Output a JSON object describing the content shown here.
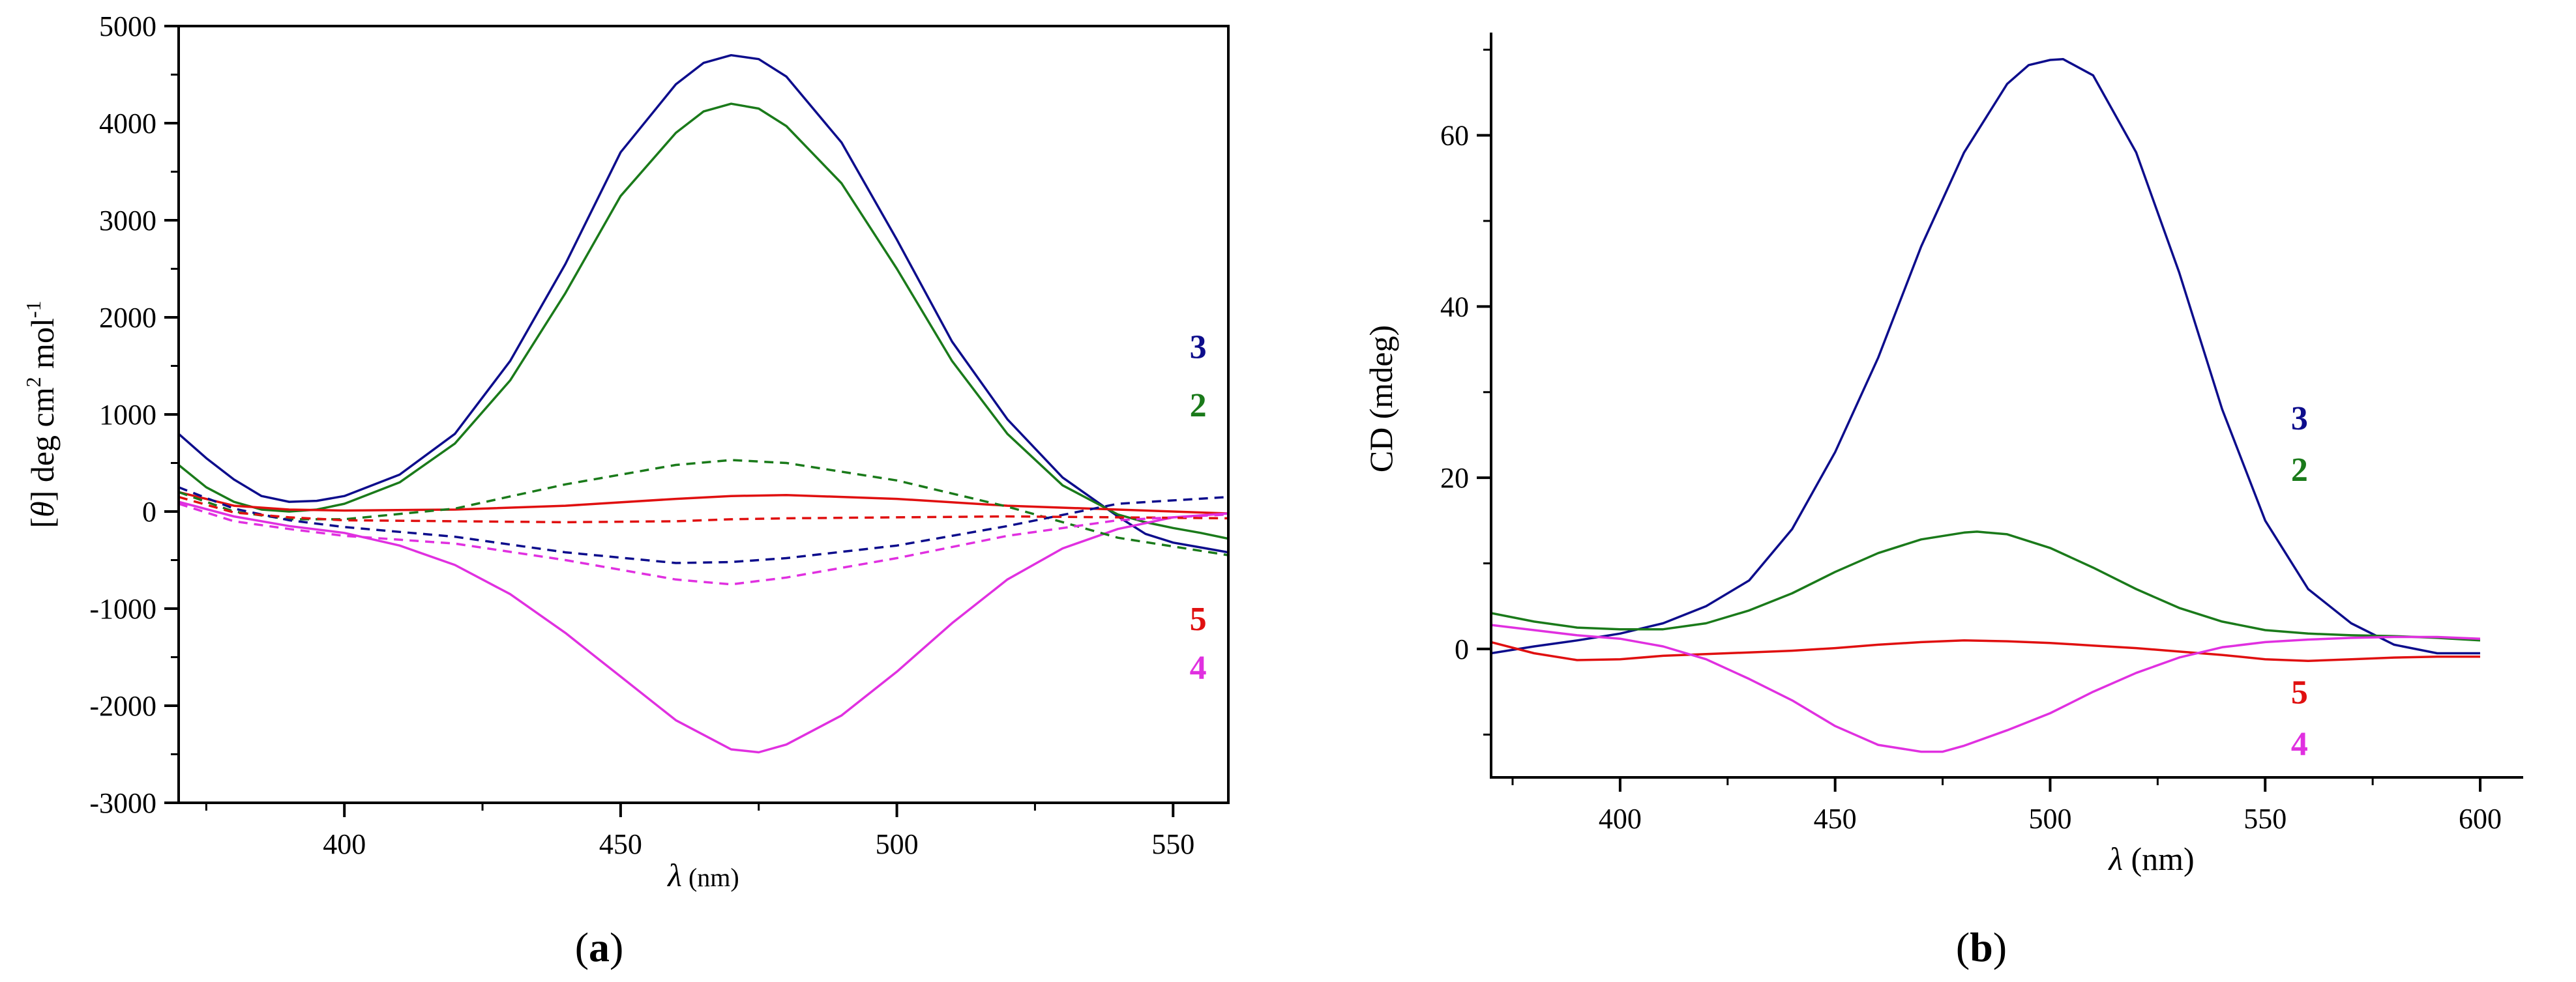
{
  "chart_data": [
    {
      "type": "line",
      "panel": "(a)",
      "panel_label": {
        "open": "(",
        "letter": "a",
        "close": ")"
      },
      "xlabel": {
        "symbol": "λ",
        "unit": " (nm)"
      },
      "ylabel": {
        "left": "[",
        "theta": "θ",
        "mid": "] deg cm",
        "sup2": "2",
        "mol": " mol",
        "supm1": "-1"
      },
      "xlim": [
        370,
        560
      ],
      "ylim": [
        -3000,
        5000
      ],
      "xticks": [
        400,
        450,
        500,
        550
      ],
      "yticks": [
        -3000,
        -2000,
        -1000,
        0,
        1000,
        2000,
        3000,
        4000,
        5000
      ],
      "series_labels": [
        {
          "text": "3",
          "color": "#0d0d8c",
          "x": 553,
          "y": 1700
        },
        {
          "text": "2",
          "color": "#1a7a1a",
          "x": 553,
          "y": 1100
        },
        {
          "text": "5",
          "color": "#e01010",
          "x": 553,
          "y": -1100
        },
        {
          "text": "4",
          "color": "#e030e0",
          "x": 553,
          "y": -1600
        }
      ],
      "series": [
        {
          "name": "3",
          "style": "solid",
          "color": "#0d0d8c",
          "x": [
            370,
            375,
            380,
            385,
            390,
            395,
            400,
            410,
            420,
            430,
            440,
            450,
            460,
            465,
            470,
            475,
            480,
            490,
            500,
            510,
            520,
            530,
            540,
            545,
            550,
            555,
            560
          ],
          "y": [
            800,
            550,
            330,
            160,
            100,
            110,
            160,
            380,
            800,
            1550,
            2550,
            3700,
            4400,
            4620,
            4700,
            4660,
            4480,
            3800,
            2800,
            1750,
            950,
            350,
            -50,
            -230,
            -320,
            -370,
            -420
          ]
        },
        {
          "name": "2",
          "style": "solid",
          "color": "#1a7a1a",
          "x": [
            370,
            375,
            380,
            385,
            390,
            395,
            400,
            410,
            420,
            430,
            440,
            450,
            460,
            465,
            470,
            475,
            480,
            490,
            500,
            510,
            520,
            530,
            540,
            545,
            550,
            555,
            560
          ],
          "y": [
            480,
            250,
            100,
            20,
            0,
            20,
            80,
            300,
            700,
            1350,
            2250,
            3250,
            3900,
            4120,
            4200,
            4150,
            3970,
            3380,
            2500,
            1550,
            800,
            270,
            -30,
            -110,
            -170,
            -220,
            -280
          ]
        },
        {
          "name": "5",
          "style": "solid",
          "color": "#e01010",
          "x": [
            370,
            380,
            390,
            400,
            420,
            440,
            460,
            470,
            480,
            500,
            520,
            540,
            560
          ],
          "y": [
            200,
            60,
            20,
            10,
            20,
            60,
            130,
            160,
            170,
            130,
            60,
            20,
            -20
          ]
        },
        {
          "name": "4",
          "style": "solid",
          "color": "#e030e0",
          "x": [
            370,
            380,
            390,
            400,
            410,
            420,
            430,
            440,
            450,
            460,
            470,
            475,
            480,
            490,
            500,
            510,
            520,
            530,
            540,
            550,
            560
          ],
          "y": [
            100,
            -50,
            -150,
            -220,
            -350,
            -550,
            -850,
            -1250,
            -1700,
            -2150,
            -2450,
            -2480,
            -2400,
            -2100,
            -1650,
            -1150,
            -700,
            -380,
            -180,
            -60,
            -20
          ]
        },
        {
          "name": "2 (dashed)",
          "style": "dashed",
          "color": "#1a7a1a",
          "x": [
            370,
            380,
            390,
            400,
            420,
            440,
            460,
            470,
            480,
            500,
            520,
            540,
            560
          ],
          "y": [
            200,
            0,
            -80,
            -80,
            30,
            280,
            480,
            530,
            500,
            320,
            50,
            -270,
            -450
          ]
        },
        {
          "name": "3 (dashed)",
          "style": "dashed",
          "color": "#0d0d8c",
          "x": [
            370,
            380,
            390,
            400,
            420,
            440,
            460,
            470,
            480,
            500,
            520,
            540,
            560
          ],
          "y": [
            250,
            30,
            -90,
            -160,
            -260,
            -420,
            -530,
            -520,
            -480,
            -350,
            -150,
            80,
            150
          ]
        },
        {
          "name": "5 (dashed)",
          "style": "dashed",
          "color": "#e01010",
          "x": [
            370,
            380,
            390,
            400,
            420,
            440,
            460,
            470,
            480,
            500,
            520,
            540,
            560
          ],
          "y": [
            150,
            -10,
            -60,
            -90,
            -100,
            -110,
            -100,
            -80,
            -70,
            -60,
            -50,
            -60,
            -70
          ]
        },
        {
          "name": "4 (dashed)",
          "style": "dashed",
          "color": "#e030e0",
          "x": [
            370,
            380,
            390,
            400,
            420,
            440,
            460,
            470,
            480,
            500,
            520,
            540,
            560
          ],
          "y": [
            80,
            -100,
            -180,
            -250,
            -330,
            -500,
            -700,
            -750,
            -680,
            -480,
            -250,
            -90,
            -30
          ]
        }
      ]
    },
    {
      "type": "line",
      "panel": "(b)",
      "panel_label": {
        "open": "(",
        "letter": "b",
        "close": ")"
      },
      "xlabel": {
        "symbol": "λ",
        "unit": " (nm)"
      },
      "ylabel": {
        "text": "CD (mdeg)"
      },
      "xlim": [
        370,
        610
      ],
      "ylim": [
        -15,
        72
      ],
      "xticks": [
        400,
        450,
        500,
        550,
        600
      ],
      "yticks": [
        0,
        20,
        40,
        60
      ],
      "series_labels": [
        {
          "text": "3",
          "color": "#0d0d8c",
          "x": 556,
          "y": 27
        },
        {
          "text": "2",
          "color": "#1a7a1a",
          "x": 556,
          "y": 21
        },
        {
          "text": "5",
          "color": "#e01010",
          "x": 556,
          "y": -5
        },
        {
          "text": "4",
          "color": "#e030e0",
          "x": 556,
          "y": -11
        }
      ],
      "series": [
        {
          "name": "3",
          "style": "solid",
          "color": "#0d0d8c",
          "x": [
            370,
            380,
            390,
            400,
            410,
            420,
            430,
            440,
            450,
            460,
            470,
            480,
            490,
            495,
            500,
            503,
            510,
            520,
            530,
            540,
            550,
            560,
            570,
            580,
            590,
            600
          ],
          "y": [
            -0.5,
            0.3,
            1,
            1.8,
            3,
            5,
            8,
            14,
            23,
            34,
            47,
            58,
            66,
            68.2,
            68.8,
            68.9,
            67,
            58,
            44,
            28,
            15,
            7,
            3,
            0.5,
            -0.5,
            -0.5
          ]
        },
        {
          "name": "2",
          "style": "solid",
          "color": "#1a7a1a",
          "x": [
            370,
            380,
            390,
            400,
            410,
            420,
            430,
            440,
            450,
            460,
            470,
            480,
            483,
            490,
            500,
            510,
            520,
            530,
            540,
            550,
            560,
            570,
            580,
            590,
            600
          ],
          "y": [
            4.2,
            3.2,
            2.5,
            2.3,
            2.3,
            3,
            4.5,
            6.5,
            9,
            11.2,
            12.8,
            13.6,
            13.7,
            13.4,
            11.8,
            9.5,
            7,
            4.8,
            3.2,
            2.2,
            1.8,
            1.6,
            1.5,
            1.3,
            1.0
          ]
        },
        {
          "name": "5",
          "style": "solid",
          "color": "#e01010",
          "x": [
            370,
            380,
            390,
            400,
            410,
            420,
            430,
            440,
            450,
            460,
            470,
            480,
            490,
            500,
            510,
            520,
            530,
            540,
            550,
            560,
            570,
            580,
            590,
            600
          ],
          "y": [
            0.8,
            -0.5,
            -1.3,
            -1.2,
            -0.8,
            -0.6,
            -0.4,
            -0.2,
            0.1,
            0.5,
            0.8,
            1.0,
            0.9,
            0.7,
            0.4,
            0.1,
            -0.3,
            -0.7,
            -1.2,
            -1.4,
            -1.2,
            -1.0,
            -0.9,
            -0.9
          ]
        },
        {
          "name": "4",
          "style": "solid",
          "color": "#e030e0",
          "x": [
            370,
            380,
            390,
            400,
            410,
            420,
            430,
            440,
            450,
            460,
            470,
            475,
            480,
            490,
            500,
            510,
            520,
            530,
            540,
            550,
            560,
            570,
            580,
            590,
            600
          ],
          "y": [
            2.8,
            2.2,
            1.6,
            1.2,
            0.3,
            -1.2,
            -3.5,
            -6,
            -9,
            -11.2,
            -12.0,
            -12.0,
            -11.3,
            -9.5,
            -7.5,
            -5,
            -2.8,
            -1.0,
            0.2,
            0.8,
            1.1,
            1.3,
            1.4,
            1.4,
            1.2
          ]
        }
      ]
    }
  ]
}
